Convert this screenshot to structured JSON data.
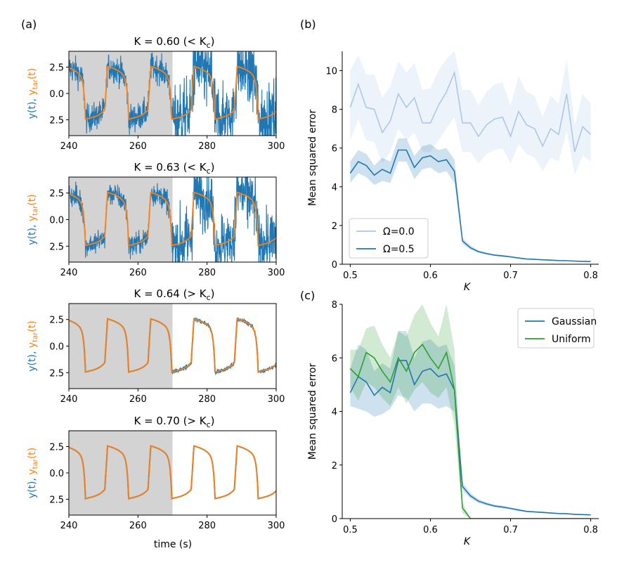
{
  "panel_labels": {
    "a": "(a)",
    "b": "(b)",
    "c": "(c)"
  },
  "left_common": {
    "ylabel_prefix": "y(t), ",
    "ylabel_target": "y",
    "ylabel_target_sub": "tar",
    "ylabel_target_suffix": "(t)",
    "xlabel": "time (s)",
    "y_ticks": [
      "2.5",
      "0.0",
      "2.5"
    ],
    "x_ticks": [
      "240",
      "260",
      "280",
      "300"
    ],
    "colors": {
      "output": "#1f77b4",
      "target": "#ff7f0e",
      "shade": "#d3d3d3"
    }
  },
  "chart_data": [
    {
      "id": "a1",
      "type": "line",
      "title_k": "K = 0.60 (< K",
      "title_sub": "c",
      "title_end": ")",
      "xlim": [
        240,
        300
      ],
      "ylim": [
        -3.2,
        3.2
      ],
      "training_window": [
        240,
        270
      ],
      "noise_train": 0.75,
      "noise_test": 1.6,
      "series": [
        {
          "name": "y(t)"
        },
        {
          "name": "y_tar(t)"
        }
      ]
    },
    {
      "id": "a2",
      "type": "line",
      "title_k": "K = 0.63 (< K",
      "title_sub": "c",
      "title_end": ")",
      "xlim": [
        240,
        300
      ],
      "ylim": [
        -3.2,
        3.2
      ],
      "training_window": [
        240,
        270
      ],
      "noise_train": 0.6,
      "noise_test": 1.4,
      "series": [
        {
          "name": "y(t)"
        },
        {
          "name": "y_tar(t)"
        }
      ]
    },
    {
      "id": "a3",
      "type": "line",
      "title_k": "K = 0.64 (> K",
      "title_sub": "c",
      "title_end": ")",
      "xlim": [
        240,
        300
      ],
      "ylim": [
        -3.2,
        3.2
      ],
      "training_window": [
        240,
        270
      ],
      "noise_train": 0.0,
      "noise_test": 0.05,
      "series": [
        {
          "name": "y(t)"
        },
        {
          "name": "y_tar(t)"
        }
      ]
    },
    {
      "id": "a4",
      "type": "line",
      "title_k": "K = 0.70 (> K",
      "title_sub": "c",
      "title_end": ")",
      "xlim": [
        240,
        300
      ],
      "ylim": [
        -3.2,
        3.2
      ],
      "training_window": [
        240,
        270
      ],
      "noise_train": 0.0,
      "noise_test": 0.0,
      "series": [
        {
          "name": "y(t)"
        },
        {
          "name": "y_tar(t)"
        }
      ]
    },
    {
      "id": "b",
      "type": "line",
      "xlabel": "K",
      "ylabel": "Mean squared error",
      "xlim": [
        0.49,
        0.81
      ],
      "ylim": [
        0,
        11
      ],
      "x_ticks": [
        "0.5",
        "0.6",
        "0.7",
        "0.8"
      ],
      "y_ticks": [
        "0",
        "2",
        "4",
        "6",
        "8",
        "10"
      ],
      "legend": "lower-left",
      "x": [
        0.5,
        0.51,
        0.52,
        0.53,
        0.54,
        0.55,
        0.56,
        0.57,
        0.58,
        0.59,
        0.6,
        0.61,
        0.62,
        0.63,
        0.64,
        0.65,
        0.66,
        0.67,
        0.68,
        0.69,
        0.7,
        0.71,
        0.72,
        0.73,
        0.74,
        0.75,
        0.76,
        0.77,
        0.78,
        0.79,
        0.8
      ],
      "series": [
        {
          "name": "Ω=0.0",
          "color": "#aec7e8",
          "values": [
            8.1,
            9.3,
            8.1,
            8.0,
            6.8,
            7.4,
            8.8,
            8.1,
            8.6,
            7.3,
            7.3,
            8.2,
            8.9,
            9.9,
            7.3,
            7.3,
            6.6,
            7.2,
            7.5,
            7.6,
            6.6,
            7.9,
            7.2,
            7.0,
            6.1,
            7.0,
            6.7,
            8.8,
            5.8,
            7.1,
            6.7
          ],
          "lower": [
            6.4,
            7.5,
            6.4,
            6.3,
            5.2,
            5.8,
            7.0,
            6.4,
            6.8,
            5.8,
            5.8,
            6.4,
            7.0,
            7.6,
            5.8,
            5.8,
            5.2,
            5.7,
            5.9,
            6.0,
            5.2,
            6.2,
            5.7,
            5.5,
            4.8,
            5.5,
            5.3,
            6.9,
            4.6,
            5.6,
            5.3
          ],
          "upper": [
            10.0,
            10.8,
            9.8,
            9.8,
            8.6,
            9.2,
            10.5,
            9.9,
            10.4,
            9.0,
            9.1,
            10.0,
            10.6,
            11.0,
            9.0,
            9.0,
            8.2,
            8.9,
            9.3,
            9.4,
            8.2,
            9.7,
            8.9,
            8.7,
            7.6,
            8.7,
            8.3,
            10.6,
            7.2,
            8.8,
            8.3
          ]
        },
        {
          "name": "Ω=0.5",
          "color": "#1f77b4",
          "values": [
            4.7,
            5.3,
            5.1,
            4.6,
            4.9,
            4.7,
            5.9,
            5.9,
            5.0,
            5.5,
            5.6,
            5.3,
            5.4,
            4.8,
            1.2,
            0.85,
            0.65,
            0.55,
            0.47,
            0.43,
            0.38,
            0.32,
            0.27,
            0.25,
            0.23,
            0.21,
            0.19,
            0.18,
            0.16,
            0.15,
            0.14
          ],
          "lower": [
            4.2,
            4.7,
            4.5,
            4.1,
            4.3,
            4.2,
            5.3,
            5.3,
            4.4,
            4.9,
            5.0,
            4.7,
            4.8,
            4.2,
            1.05,
            0.75,
            0.58,
            0.49,
            0.42,
            0.38,
            0.34,
            0.28,
            0.24,
            0.22,
            0.2,
            0.18,
            0.17,
            0.16,
            0.14,
            0.13,
            0.12
          ],
          "upper": [
            5.3,
            5.9,
            5.7,
            5.1,
            5.5,
            5.3,
            6.5,
            6.5,
            5.6,
            6.1,
            6.2,
            5.9,
            6.0,
            5.4,
            1.35,
            0.95,
            0.72,
            0.61,
            0.52,
            0.48,
            0.42,
            0.36,
            0.3,
            0.28,
            0.26,
            0.24,
            0.21,
            0.2,
            0.18,
            0.17,
            0.16
          ]
        }
      ]
    },
    {
      "id": "c",
      "type": "line",
      "xlabel": "K",
      "ylabel": "Mean squared error",
      "xlim": [
        0.49,
        0.81
      ],
      "ylim": [
        0,
        8
      ],
      "x_ticks": [
        "0.5",
        "0.6",
        "0.7",
        "0.8"
      ],
      "y_ticks": [
        "0",
        "2",
        "4",
        "6",
        "8"
      ],
      "legend": "top-right",
      "x": [
        0.5,
        0.51,
        0.52,
        0.53,
        0.54,
        0.55,
        0.56,
        0.57,
        0.58,
        0.59,
        0.6,
        0.61,
        0.62,
        0.63,
        0.64,
        0.65,
        0.66,
        0.67,
        0.68,
        0.69,
        0.7,
        0.71,
        0.72,
        0.73,
        0.74,
        0.75,
        0.76,
        0.77,
        0.78,
        0.79,
        0.8
      ],
      "series": [
        {
          "name": "Gaussian",
          "color": "#1f77b4",
          "values": [
            4.7,
            5.3,
            5.1,
            4.6,
            4.9,
            4.7,
            5.9,
            5.9,
            5.0,
            5.5,
            5.6,
            5.3,
            5.4,
            4.8,
            1.2,
            0.85,
            0.65,
            0.55,
            0.47,
            0.43,
            0.38,
            0.32,
            0.27,
            0.25,
            0.23,
            0.21,
            0.19,
            0.18,
            0.16,
            0.15,
            0.14
          ],
          "lower": [
            4.2,
            4.1,
            4.0,
            3.8,
            3.9,
            4.1,
            4.6,
            4.5,
            4.0,
            4.3,
            4.3,
            4.1,
            4.2,
            4.0,
            1.05,
            0.75,
            0.58,
            0.49,
            0.42,
            0.38,
            0.34,
            0.28,
            0.24,
            0.22,
            0.2,
            0.18,
            0.17,
            0.16,
            0.14,
            0.13,
            0.12
          ],
          "upper": [
            5.6,
            6.5,
            6.3,
            5.5,
            5.8,
            5.6,
            7.0,
            7.0,
            6.0,
            6.6,
            6.7,
            6.4,
            6.5,
            5.7,
            1.35,
            0.95,
            0.72,
            0.61,
            0.52,
            0.48,
            0.42,
            0.36,
            0.3,
            0.28,
            0.26,
            0.24,
            0.21,
            0.2,
            0.18,
            0.17,
            0.16
          ]
        },
        {
          "name": "Uniform",
          "color": "#2ca02c",
          "values": [
            5.6,
            5.3,
            6.2,
            6.0,
            5.5,
            5.1,
            6.0,
            5.5,
            6.2,
            6.5,
            6.0,
            5.6,
            6.2,
            4.8,
            0.4,
            0.0,
            0.0,
            0.0,
            0.0,
            0.0,
            0.0,
            0.0,
            0.0,
            0.0,
            0.0,
            0.0,
            0.0,
            0.0,
            0.0,
            0.0,
            0.0
          ],
          "lower": [
            4.9,
            4.4,
            5.1,
            4.9,
            4.5,
            4.2,
            4.9,
            4.3,
            4.8,
            5.1,
            4.7,
            4.5,
            4.9,
            3.5,
            0.2,
            0.0,
            0.0,
            0.0,
            0.0,
            0.0,
            0.0,
            0.0,
            0.0,
            0.0,
            0.0,
            0.0,
            0.0,
            0.0,
            0.0,
            0.0,
            0.0
          ],
          "upper": [
            6.3,
            6.3,
            7.1,
            7.2,
            6.5,
            6.0,
            7.0,
            6.8,
            7.6,
            8.0,
            7.3,
            6.8,
            8.0,
            6.3,
            0.6,
            0.0,
            0.0,
            0.0,
            0.0,
            0.0,
            0.0,
            0.0,
            0.0,
            0.0,
            0.0,
            0.0,
            0.0,
            0.0,
            0.0,
            0.0,
            0.0
          ]
        }
      ]
    }
  ]
}
